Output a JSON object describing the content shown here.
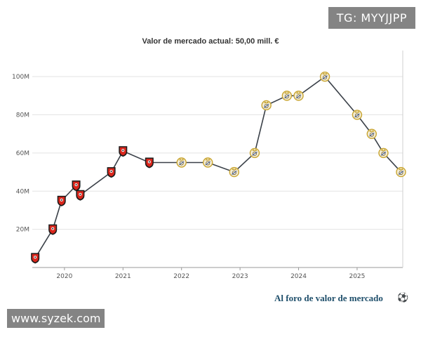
{
  "watermarks": {
    "top_right": "TG: MYYJJPP",
    "bottom_left": "www.syzek.com"
  },
  "link": {
    "label": "Al foro de valor de mercado",
    "icon": "forum-icon"
  },
  "colors": {
    "line": "#3a4048",
    "grid": "#e3e3e3",
    "rennes_red": "#d9261c",
    "rennes_black": "#1a1a1a",
    "real_madrid_gold": "#c9a530",
    "link": "#1f4f6b"
  },
  "chart_data": {
    "type": "line",
    "title": "Valor de mercado actual: 50,00 mill. €",
    "xlabel": "",
    "ylabel": "",
    "xlim": [
      2019.45,
      2025.78
    ],
    "ylim": [
      0,
      110
    ],
    "x_ticks": [
      2020,
      2021,
      2022,
      2023,
      2024,
      2025
    ],
    "x_tick_labels": [
      "2020",
      "2021",
      "2022",
      "2023",
      "2024",
      "2025"
    ],
    "y_ticks": [
      20,
      40,
      60,
      80,
      100
    ],
    "y_tick_labels": [
      "20M",
      "40M",
      "60M",
      "80M",
      "100M"
    ],
    "grid": true,
    "series": [
      {
        "points": [
          {
            "x": 2019.5,
            "y": 5,
            "club": "rennes"
          },
          {
            "x": 2019.8,
            "y": 20,
            "club": "rennes"
          },
          {
            "x": 2019.95,
            "y": 35,
            "club": "rennes"
          },
          {
            "x": 2020.2,
            "y": 43,
            "club": "rennes"
          },
          {
            "x": 2020.27,
            "y": 38,
            "club": "rennes"
          },
          {
            "x": 2020.8,
            "y": 50,
            "club": "rennes"
          },
          {
            "x": 2021.0,
            "y": 61,
            "club": "rennes"
          },
          {
            "x": 2021.45,
            "y": 55,
            "club": "rennes"
          },
          {
            "x": 2022.0,
            "y": 55,
            "club": "real_madrid"
          },
          {
            "x": 2022.45,
            "y": 55,
            "club": "real_madrid"
          },
          {
            "x": 2022.9,
            "y": 50,
            "club": "real_madrid"
          },
          {
            "x": 2023.25,
            "y": 60,
            "club": "real_madrid"
          },
          {
            "x": 2023.45,
            "y": 85,
            "club": "real_madrid"
          },
          {
            "x": 2023.8,
            "y": 90,
            "club": "real_madrid"
          },
          {
            "x": 2024.0,
            "y": 90,
            "club": "real_madrid"
          },
          {
            "x": 2024.45,
            "y": 100,
            "club": "real_madrid"
          },
          {
            "x": 2025.0,
            "y": 80,
            "club": "real_madrid"
          },
          {
            "x": 2025.25,
            "y": 70,
            "club": "real_madrid"
          },
          {
            "x": 2025.45,
            "y": 60,
            "club": "real_madrid"
          },
          {
            "x": 2025.75,
            "y": 50,
            "club": "real_madrid"
          }
        ]
      }
    ]
  }
}
